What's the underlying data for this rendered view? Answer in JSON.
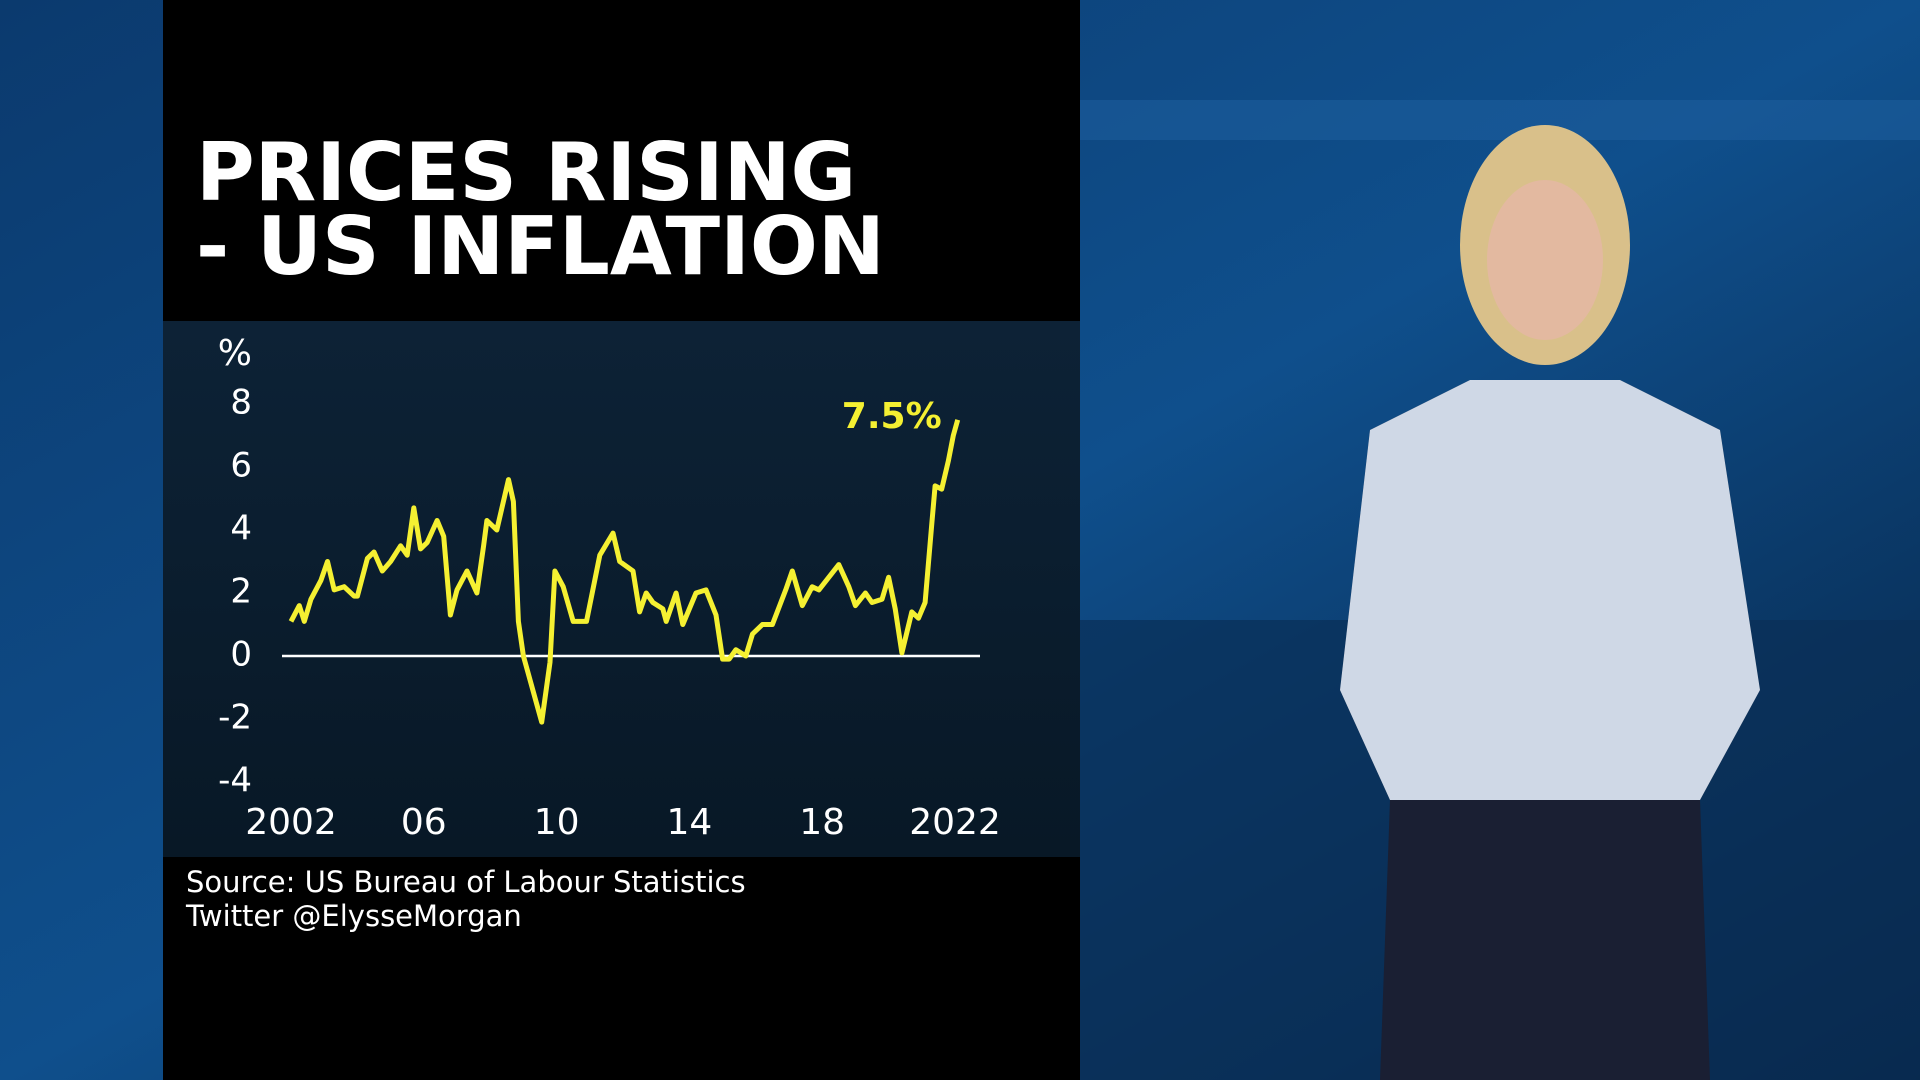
{
  "chart_data": {
    "type": "line",
    "title_lines": [
      "PRICES RISING",
      "- US INFLATION"
    ],
    "y_label": "%",
    "xlim": [
      2002,
      2022
    ],
    "xticks": [
      2002,
      {
        "value": 2006,
        "label": "06"
      },
      {
        "value": 2010,
        "label": "10"
      },
      {
        "value": 2014,
        "label": "14"
      },
      {
        "value": 2018,
        "label": "18"
      },
      2022
    ],
    "ylim": [
      -4,
      8
    ],
    "yticks": [
      -4,
      -2,
      0,
      2,
      4,
      6,
      8
    ],
    "zero_line": true,
    "series": [
      {
        "color": "#f5f032",
        "x": [
          2002.0,
          2002.25,
          2002.4,
          2002.6,
          2002.9,
          2003.1,
          2003.3,
          2003.6,
          2003.9,
          2004.0,
          2004.3,
          2004.5,
          2004.75,
          2005.0,
          2005.3,
          2005.5,
          2005.7,
          2005.9,
          2006.1,
          2006.4,
          2006.6,
          2006.8,
          2007.0,
          2007.3,
          2007.6,
          2007.8,
          2007.9,
          2008.2,
          2008.55,
          2008.7,
          2008.85,
          2009.0,
          2009.55,
          2009.8,
          2009.95,
          2010.2,
          2010.5,
          2010.9,
          2011.3,
          2011.7,
          2011.9,
          2012.3,
          2012.5,
          2012.7,
          2012.9,
          2013.2,
          2013.3,
          2013.6,
          2013.8,
          2014.2,
          2014.5,
          2014.8,
          2015.0,
          2015.2,
          2015.4,
          2015.7,
          2015.9,
          2016.2,
          2016.5,
          2016.9,
          2017.1,
          2017.4,
          2017.7,
          2017.9,
          2018.2,
          2018.5,
          2018.8,
          2019.0,
          2019.3,
          2019.5,
          2019.8,
          2020.0,
          2020.2,
          2020.4,
          2020.7,
          2020.9,
          2021.1,
          2021.3,
          2021.4,
          2021.6,
          2021.8,
          2021.95,
          2022.08
        ],
        "values": [
          1.1,
          1.6,
          1.1,
          1.8,
          2.4,
          3.0,
          2.1,
          2.2,
          1.9,
          1.9,
          3.1,
          3.3,
          2.7,
          3.0,
          3.5,
          3.2,
          4.7,
          3.4,
          3.6,
          4.3,
          3.8,
          1.3,
          2.1,
          2.7,
          2.0,
          3.5,
          4.3,
          4.0,
          5.6,
          4.9,
          1.1,
          0.0,
          -2.1,
          -0.2,
          2.7,
          2.2,
          1.1,
          1.1,
          3.2,
          3.9,
          3.0,
          2.7,
          1.4,
          2.0,
          1.7,
          1.5,
          1.1,
          2.0,
          1.0,
          2.0,
          2.1,
          1.3,
          -0.1,
          -0.1,
          0.2,
          0.0,
          0.7,
          1.0,
          1.0,
          2.1,
          2.7,
          1.6,
          2.2,
          2.1,
          2.5,
          2.9,
          2.2,
          1.6,
          2.0,
          1.7,
          1.8,
          2.5,
          1.5,
          0.1,
          1.4,
          1.2,
          1.7,
          4.2,
          5.4,
          5.3,
          6.2,
          7.0,
          7.5
        ]
      }
    ],
    "annotations": [
      {
        "text": "7.5%",
        "x": 2022.08,
        "y": 7.5
      }
    ],
    "source_lines": [
      "Source: US Bureau of Labour Statistics",
      "Twitter @ElysseMorgan"
    ]
  }
}
